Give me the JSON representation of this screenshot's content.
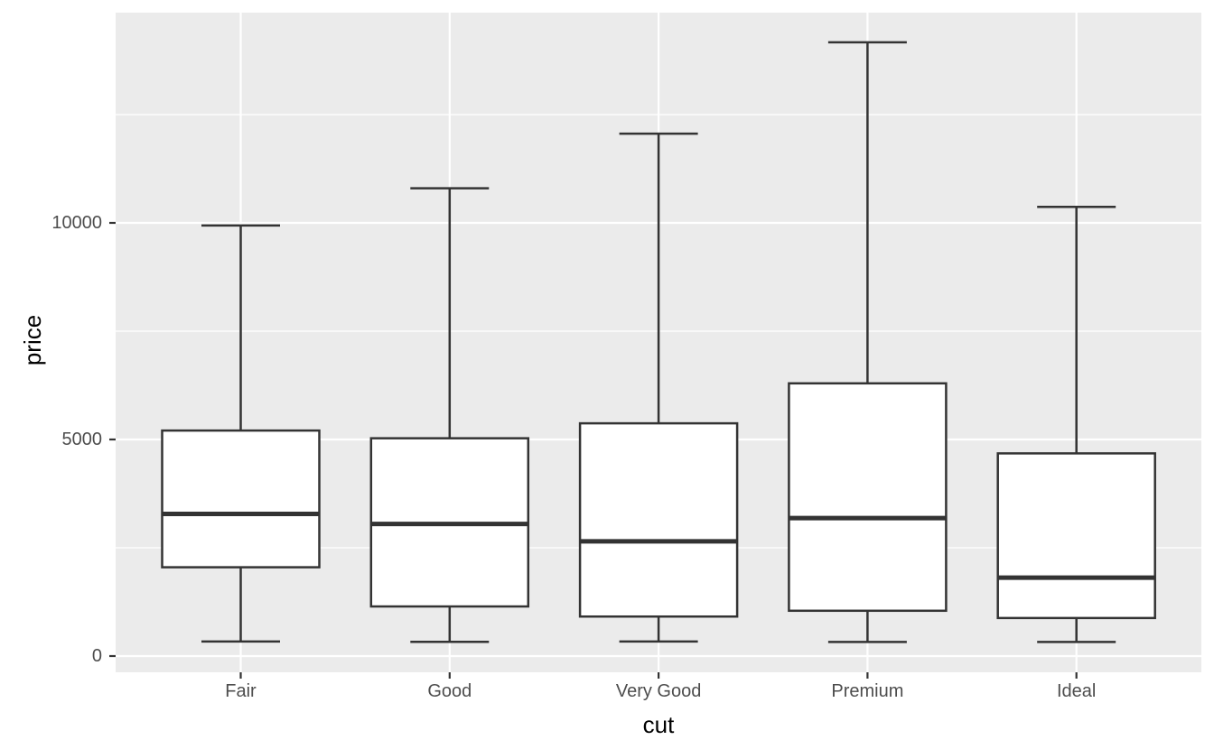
{
  "chart_data": {
    "type": "boxplot",
    "title": "",
    "xlabel": "cut",
    "ylabel": "price",
    "categories": [
      "Fair",
      "Good",
      "Very Good",
      "Premium",
      "Ideal"
    ],
    "series": [
      {
        "category": "Fair",
        "whisker_low": 337,
        "q1": 2050,
        "median": 3282,
        "q3": 5206,
        "whisker_high": 9940
      },
      {
        "category": "Good",
        "whisker_low": 327,
        "q1": 1145,
        "median": 3050,
        "q3": 5028,
        "whisker_high": 10800
      },
      {
        "category": "Very Good",
        "whisker_low": 336,
        "q1": 912,
        "median": 2648,
        "q3": 5373,
        "whisker_high": 12060
      },
      {
        "category": "Premium",
        "whisker_low": 326,
        "q1": 1046,
        "median": 3185,
        "q3": 6296,
        "whisker_high": 14170
      },
      {
        "category": "Ideal",
        "whisker_low": 326,
        "q1": 878,
        "median": 1810,
        "q3": 4679,
        "whisker_high": 10370
      }
    ],
    "y_major_ticks": [
      0,
      5000,
      10000
    ],
    "y_minor_gridlines": [
      2500,
      7500,
      12500
    ],
    "ylim": [
      -375,
      14860
    ],
    "grid": true,
    "legend_position": "none",
    "outliers_shown": false
  },
  "colors": {
    "figure_background": "#FFFFFF",
    "panel_background": "#EBEBEB",
    "gridline": "#FFFFFF",
    "box_stroke": "#333333",
    "box_fill": "#FFFFFF",
    "tick_mark": "#333333",
    "tick_label": "#4D4D4D",
    "axis_title": "#000000"
  }
}
